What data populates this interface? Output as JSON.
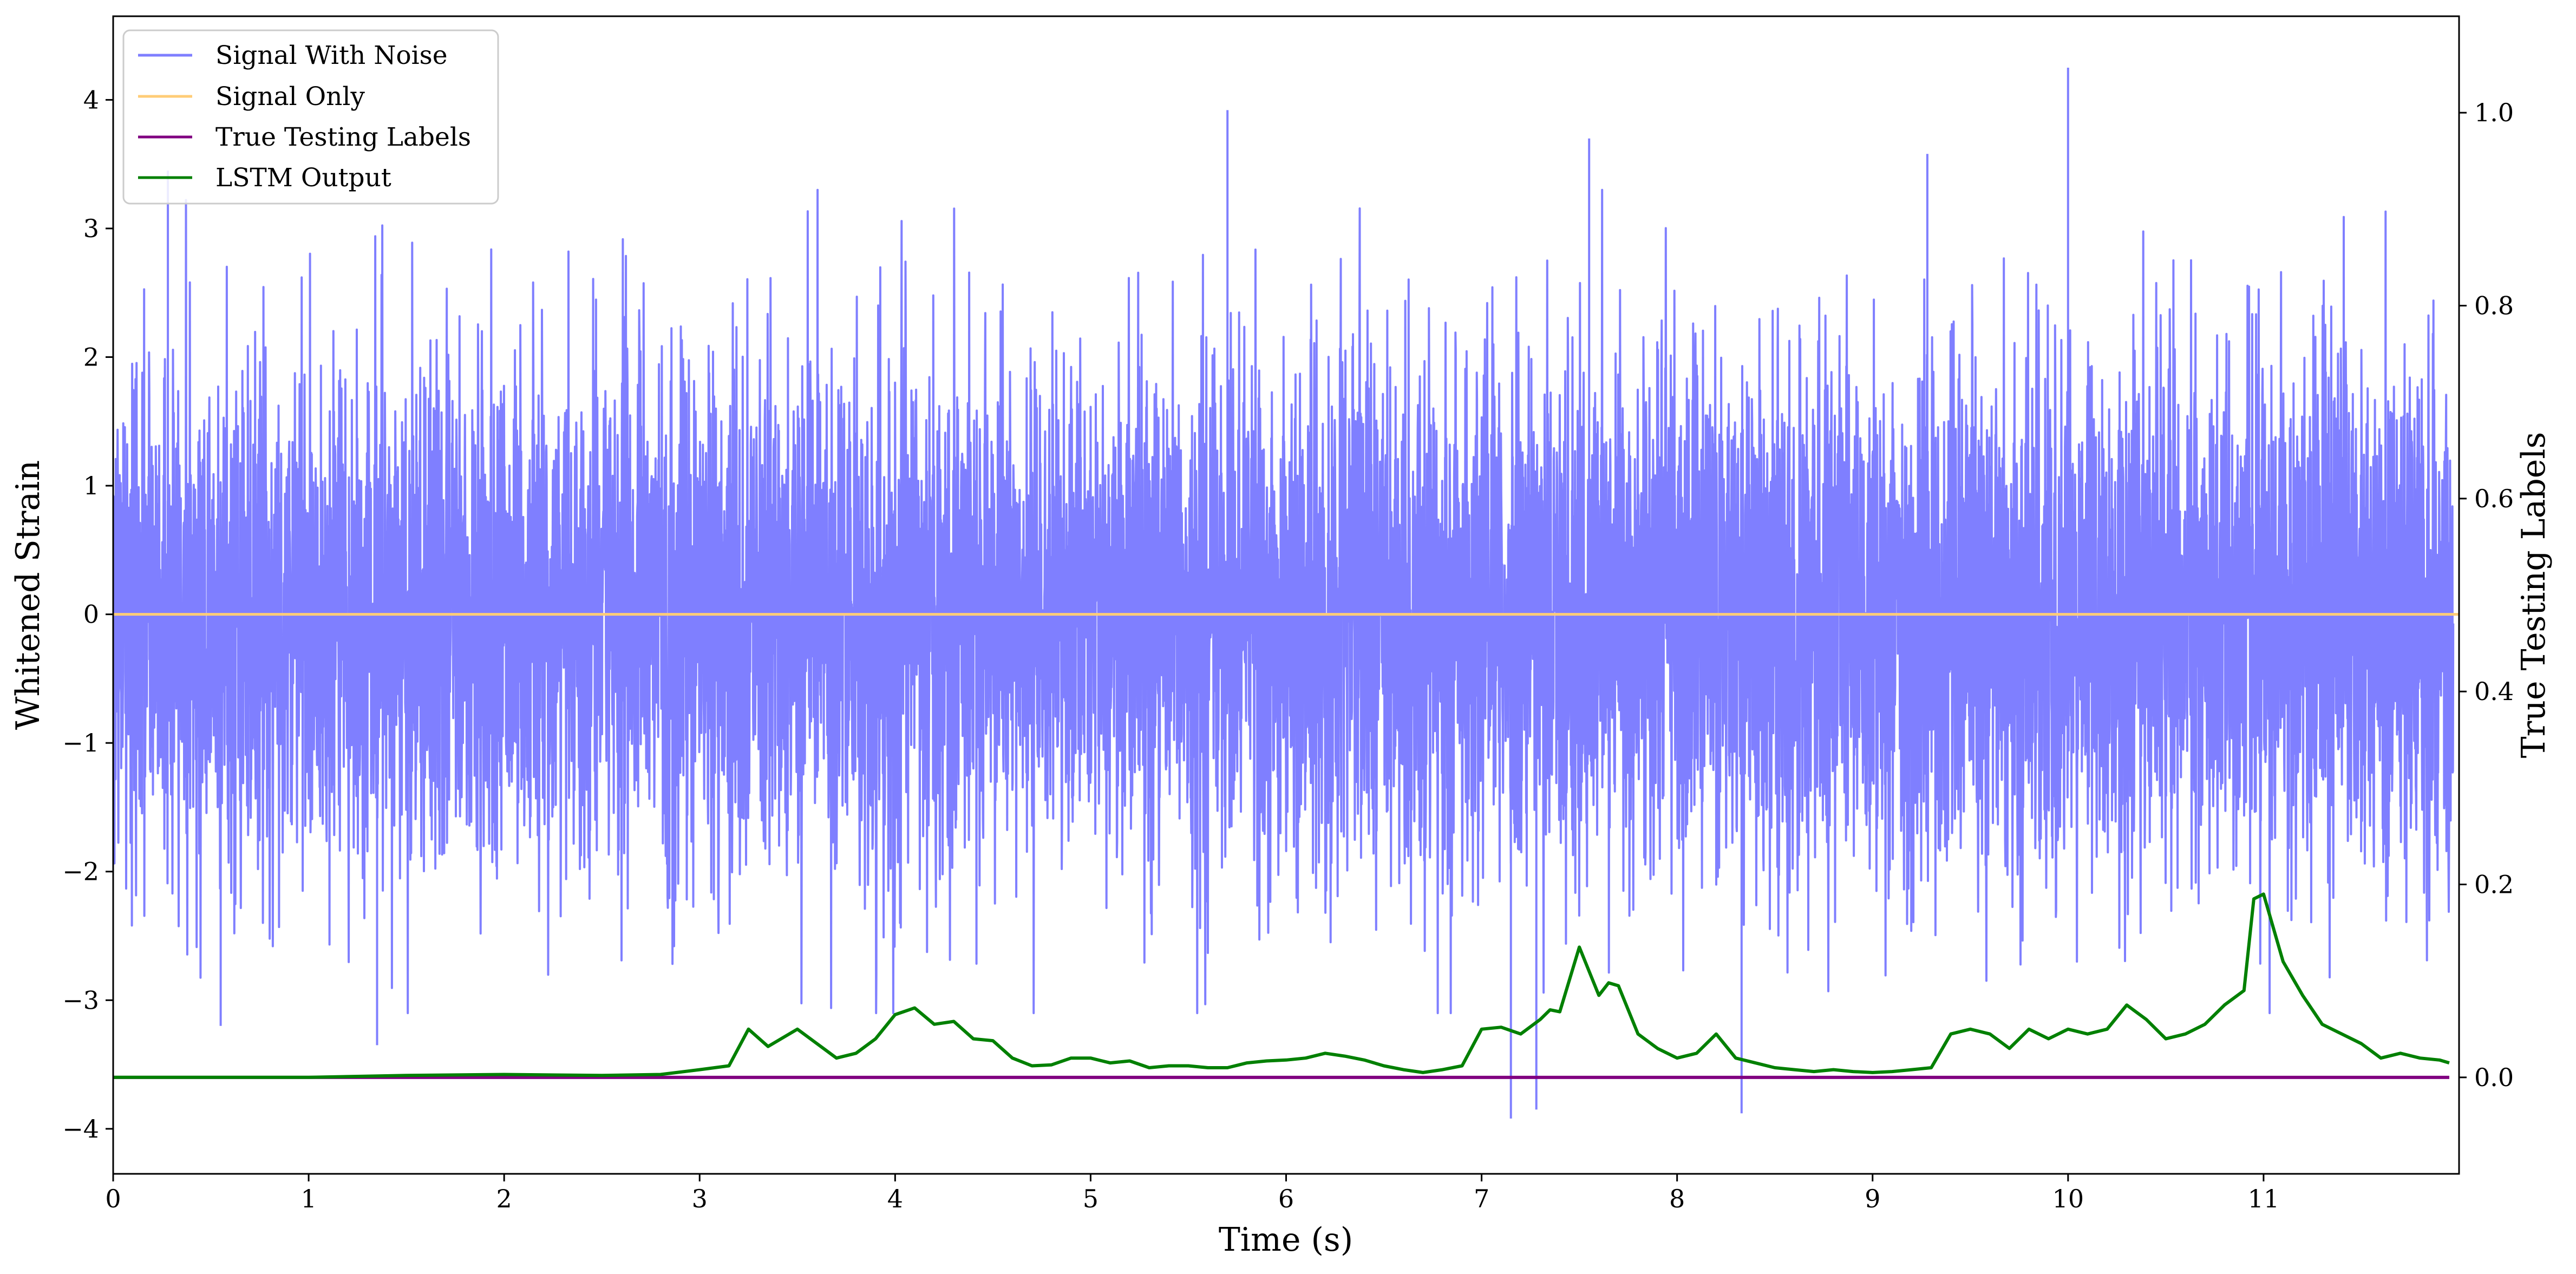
{
  "chart_data": {
    "type": "line",
    "xlabel": "Time (s)",
    "ylabel": "Whitened Strain",
    "y2label": "True Testing Labels",
    "xlim": [
      0,
      12
    ],
    "ylim": [
      -4.35,
      4.65
    ],
    "y2lim": [
      -0.1,
      1.1
    ],
    "x_ticks": [
      0,
      1,
      2,
      3,
      4,
      5,
      6,
      7,
      8,
      9,
      10,
      11
    ],
    "y_ticks": [
      -4,
      -3,
      -2,
      -1,
      0,
      1,
      2,
      3,
      4
    ],
    "y2_ticks": [
      "0.0",
      "0.2",
      "0.4",
      "0.6",
      "0.8",
      "1.0"
    ],
    "grid": false,
    "legend_position": "upper-left",
    "legend": [
      "Signal With Noise",
      "Signal Only",
      "True Testing Labels",
      "LSTM Output"
    ],
    "series": [
      {
        "name": "Signal With Noise",
        "axis": "left",
        "color": "#7f7fff",
        "note_values": "dense whitened noise, roughly zero-mean, peaks up to ~4.25 at t≈10.0 s, troughs down to ~-3.9 at t≈7.15 s and t≈8.33 s",
        "peaks": [
          [
            0.28,
            3.45
          ],
          [
            5.7,
            3.92
          ],
          [
            10.0,
            4.25
          ],
          [
            7.55,
            3.7
          ],
          [
            9.28,
            3.58
          ]
        ],
        "troughs": [
          [
            7.15,
            -3.92
          ],
          [
            7.28,
            -3.85
          ],
          [
            8.33,
            -3.88
          ],
          [
            1.35,
            -3.35
          ],
          [
            0.55,
            -3.2
          ]
        ]
      },
      {
        "name": "Signal Only",
        "axis": "left",
        "color": "#ffcc77",
        "x": [
          0,
          12
        ],
        "values": [
          0,
          0
        ]
      },
      {
        "name": "True Testing Labels",
        "axis": "right",
        "color": "#800080",
        "x": [
          0,
          11.95
        ],
        "values": [
          0,
          0
        ]
      },
      {
        "name": "LSTM Output",
        "axis": "right",
        "color": "#008000",
        "x": [
          0,
          0.5,
          1,
          1.5,
          2,
          2.5,
          2.8,
          3.0,
          3.15,
          3.25,
          3.35,
          3.5,
          3.6,
          3.7,
          3.8,
          3.9,
          4.0,
          4.1,
          4.2,
          4.3,
          4.4,
          4.5,
          4.6,
          4.7,
          4.8,
          4.9,
          5.0,
          5.1,
          5.2,
          5.3,
          5.4,
          5.5,
          5.6,
          5.7,
          5.8,
          5.9,
          6.0,
          6.1,
          6.2,
          6.3,
          6.4,
          6.5,
          6.6,
          6.7,
          6.8,
          6.9,
          7.0,
          7.1,
          7.2,
          7.3,
          7.35,
          7.4,
          7.5,
          7.6,
          7.65,
          7.7,
          7.8,
          7.9,
          8.0,
          8.1,
          8.2,
          8.3,
          8.4,
          8.5,
          8.6,
          8.7,
          8.8,
          8.9,
          9.0,
          9.1,
          9.2,
          9.3,
          9.4,
          9.5,
          9.6,
          9.7,
          9.8,
          9.9,
          10.0,
          10.1,
          10.2,
          10.3,
          10.4,
          10.5,
          10.6,
          10.7,
          10.8,
          10.9,
          10.95,
          11.0,
          11.1,
          11.2,
          11.3,
          11.4,
          11.5,
          11.6,
          11.7,
          11.8,
          11.9,
          11.95
        ],
        "values": [
          0.0,
          0.0,
          0.0,
          0.002,
          0.003,
          0.002,
          0.003,
          0.008,
          0.012,
          0.05,
          0.032,
          0.05,
          0.035,
          0.02,
          0.025,
          0.04,
          0.065,
          0.072,
          0.055,
          0.058,
          0.04,
          0.038,
          0.02,
          0.012,
          0.013,
          0.02,
          0.02,
          0.015,
          0.017,
          0.01,
          0.012,
          0.012,
          0.01,
          0.01,
          0.015,
          0.017,
          0.018,
          0.02,
          0.025,
          0.022,
          0.018,
          0.012,
          0.008,
          0.005,
          0.008,
          0.012,
          0.05,
          0.052,
          0.045,
          0.06,
          0.07,
          0.068,
          0.135,
          0.085,
          0.098,
          0.095,
          0.045,
          0.03,
          0.02,
          0.025,
          0.045,
          0.02,
          0.015,
          0.01,
          0.008,
          0.006,
          0.008,
          0.006,
          0.005,
          0.006,
          0.008,
          0.01,
          0.045,
          0.05,
          0.045,
          0.03,
          0.05,
          0.04,
          0.05,
          0.045,
          0.05,
          0.075,
          0.06,
          0.04,
          0.045,
          0.055,
          0.075,
          0.09,
          0.185,
          0.19,
          0.12,
          0.085,
          0.055,
          0.045,
          0.035,
          0.02,
          0.025,
          0.02,
          0.018,
          0.015
        ]
      }
    ]
  }
}
